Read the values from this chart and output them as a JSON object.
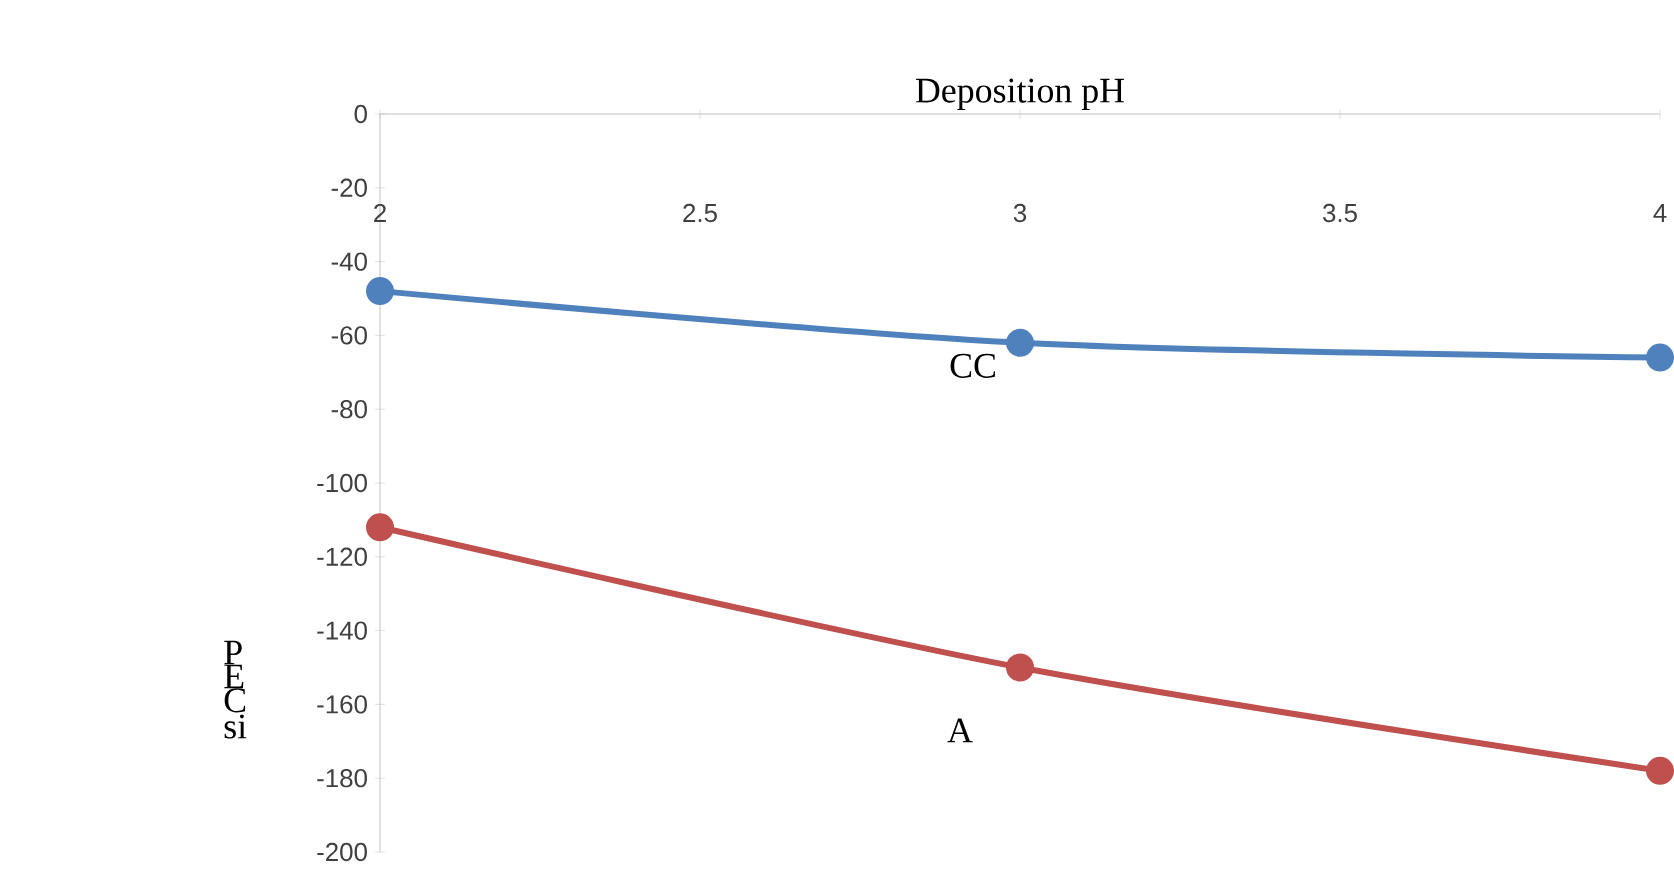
{
  "chart_data": {
    "type": "line",
    "xlabel": "Deposition pH",
    "ylabel": "P E C si",
    "x": [
      2,
      3,
      4
    ],
    "series": [
      {
        "name": "CC",
        "color": "#4f81bd",
        "values": [
          -48,
          -62,
          -66
        ]
      },
      {
        "name": "A",
        "color": "#c0504d",
        "values": [
          -112,
          -150,
          -178
        ]
      }
    ],
    "xlim": [
      2,
      4
    ],
    "xticks": [
      2,
      2.5,
      3,
      3.5,
      4
    ],
    "ylim": [
      -200,
      0
    ],
    "yticks": [
      -200,
      -180,
      -160,
      -140,
      -120,
      -100,
      -80,
      -60,
      -40,
      -20,
      0
    ],
    "grid": false,
    "legend": false,
    "marker": "circle",
    "line_style": "solid"
  }
}
